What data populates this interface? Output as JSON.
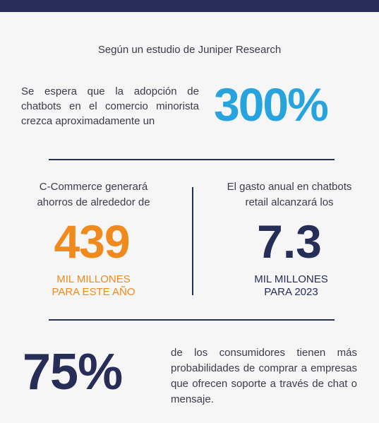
{
  "colors": {
    "navy": "#262d57",
    "blue": "#27a4dd",
    "orange": "#f08a1c",
    "text": "#3b3b4a",
    "background": "#f6f6f6"
  },
  "intro": "Según un estudio de Juniper Research",
  "adoption": {
    "text": "Se espera que la adopción de chatbots en el comercio minorista crezca aproximadamente un",
    "value": "300%"
  },
  "savings": {
    "text_lines": [
      "C-Commerce generará",
      "ahorros de alrededor de"
    ],
    "value": "439",
    "unit_lines": [
      "MIL MILLONES",
      "PARA ESTE AÑO"
    ]
  },
  "spending": {
    "text_lines": [
      "El gasto anual en chatbots",
      "retail alcanzará los"
    ],
    "value": "7.3",
    "unit_lines": [
      "MIL MILLONES",
      "PARA 2023"
    ]
  },
  "consumers": {
    "value": "75%",
    "text": "de los consumidores tienen más probabilidades de comprar a empresas que ofrecen soporte a través de chat o mensaje."
  }
}
